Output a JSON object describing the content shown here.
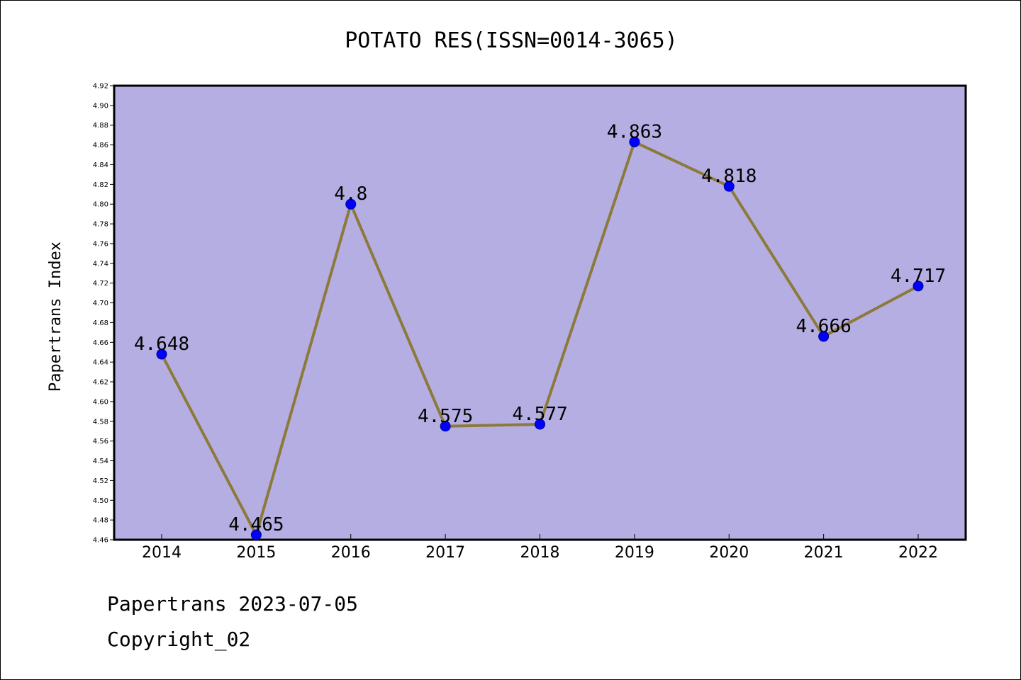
{
  "chart_data": {
    "type": "line",
    "title": "POTATO RES(ISSN=0014-3065)",
    "xlabel": "",
    "ylabel": "Papertrans Index",
    "categories": [
      "2014",
      "2015",
      "2016",
      "2017",
      "2018",
      "2019",
      "2020",
      "2021",
      "2022"
    ],
    "series": [
      {
        "values": [
          4.648,
          4.465,
          4.8,
          4.575,
          4.577,
          4.863,
          4.818,
          4.666,
          4.717
        ]
      }
    ],
    "data_labels": [
      "4.648",
      "4.465",
      "4.8",
      "4.575",
      "4.577",
      "4.863",
      "4.818",
      "4.666",
      "4.717"
    ],
    "ylim": [
      4.46,
      4.92
    ],
    "ytick_step": 0.02,
    "grid": false,
    "legend": "none",
    "colors": {
      "plot_background": "#b5aee3",
      "line": "#8b7a3a",
      "marker": "#0000ff",
      "marker_edge": "#00008b"
    }
  },
  "footer": {
    "line1": "Papertrans 2023-07-05",
    "line2": "Copyright_02"
  }
}
